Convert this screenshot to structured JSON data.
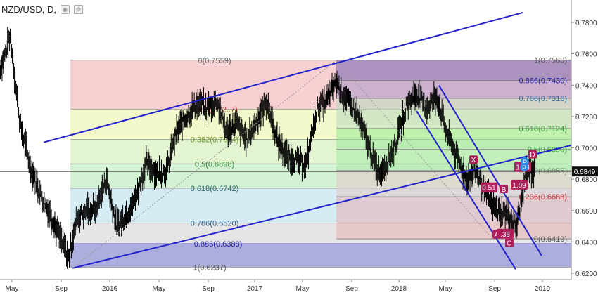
{
  "header": {
    "symbol_title": "NZD/USD, D,",
    "icon_eye": "eye-icon",
    "icon_settings": "gear-icon"
  },
  "price_badge": "0.6849",
  "colors": {
    "channel": "#2222cc",
    "fib_upper": "#e8a5a5",
    "fib_green": "#a8e6a0",
    "fib_blue": "#a8c8e8",
    "fib_lavender": "#8888c8",
    "pattern": "#b01e5a",
    "candles": "#000000"
  },
  "chart_data": {
    "type": "line",
    "title": "NZD/USD, D,",
    "xlabel": "",
    "ylabel": "",
    "x_ticks": [
      "May",
      "Sep",
      "2016",
      "May",
      "Sep",
      "2017",
      "May",
      "Sep",
      "2018",
      "May",
      "Sep",
      "2019"
    ],
    "y_ticks": [
      "0.7800",
      "0.7600",
      "0.7400",
      "0.7200",
      "0.7000",
      "0.6800",
      "0.6600",
      "0.6400",
      "0.6200"
    ],
    "ylim": [
      0.618,
      0.7885
    ],
    "x_domain": [
      "2015-03-20",
      "2019-03-08"
    ],
    "grid": false,
    "series": [
      {
        "x": [
          "2015-03-20",
          "2015-04-15",
          "2015-05-10",
          "2015-06-05",
          "2015-07-01",
          "2015-07-25",
          "2015-08-20",
          "2015-09-10",
          "2015-10-01",
          "2015-10-25",
          "2015-11-20",
          "2015-12-15",
          "2016-01-10",
          "2016-02-05",
          "2016-03-01",
          "2016-03-25",
          "2016-04-20",
          "2016-05-15",
          "2016-06-10",
          "2016-07-05",
          "2016-08-01",
          "2016-08-25",
          "2016-09-20",
          "2016-10-15",
          "2016-11-10",
          "2016-12-05",
          "2017-01-01",
          "2017-01-25",
          "2017-02-20",
          "2017-03-15",
          "2017-04-10",
          "2017-05-05",
          "2017-06-01",
          "2017-06-25",
          "2017-07-20",
          "2017-08-15",
          "2017-09-10",
          "2017-10-05",
          "2017-11-01",
          "2017-11-25",
          "2017-12-20",
          "2018-01-15",
          "2018-02-10",
          "2018-03-05",
          "2018-04-01",
          "2018-04-25",
          "2018-05-20",
          "2018-06-15",
          "2018-07-10",
          "2018-08-05",
          "2018-08-30",
          "2018-09-25",
          "2018-10-20",
          "2018-11-15",
          "2018-12-08"
        ],
        "values": [
          0.75,
          0.77,
          0.715,
          0.688,
          0.67,
          0.658,
          0.642,
          0.63,
          0.655,
          0.66,
          0.662,
          0.68,
          0.65,
          0.658,
          0.67,
          0.69,
          0.685,
          0.685,
          0.71,
          0.72,
          0.728,
          0.725,
          0.73,
          0.71,
          0.715,
          0.705,
          0.718,
          0.73,
          0.705,
          0.695,
          0.692,
          0.69,
          0.725,
          0.73,
          0.742,
          0.73,
          0.722,
          0.705,
          0.685,
          0.69,
          0.704,
          0.728,
          0.735,
          0.725,
          0.733,
          0.71,
          0.695,
          0.68,
          0.685,
          0.67,
          0.66,
          0.658,
          0.65,
          0.685,
          0.686
        ],
        "labels_mode": "approximate path"
      }
    ],
    "fib_left": {
      "levels": [
        {
          "label": "0(0.7559)",
          "value": 0.7559
        },
        {
          "label": "0.2...(0.72..7)",
          "value": 0.7247
        },
        {
          "label": "0.382(0.7054)",
          "value": 0.7054
        },
        {
          "label": "0.5(0.6898)",
          "value": 0.6898
        },
        {
          "label": "0.618(0.6742)",
          "value": 0.6742
        },
        {
          "label": "0.786(0.6520)",
          "value": 0.652
        },
        {
          "label": "0.886(0.6388)",
          "value": 0.6388
        },
        {
          "label": "1(0.6237)",
          "value": 0.6237
        }
      ]
    },
    "fib_right": {
      "levels": [
        {
          "label": "1(0.7560)",
          "value": 0.756
        },
        {
          "label": "0.886(0.7430)",
          "value": 0.743
        },
        {
          "label": "0.786(0.7316)",
          "value": 0.7316
        },
        {
          "label": "0.618(0.7124)",
          "value": 0.7124
        },
        {
          "label": "0.5(0.6990)",
          "value": 0.699
        },
        {
          "label": "0.382(0.6855)",
          "value": 0.6855
        },
        {
          "label": "0.236(0.6688)",
          "value": 0.6688
        },
        {
          "label": "0(0.6419)",
          "value": 0.6419
        }
      ]
    },
    "harmonic_labels": [
      "X",
      "A",
      "B",
      "C",
      "D",
      "P",
      "P"
    ],
    "ratio_labels": [
      "0.51",
      "1.13",
      "1.89",
      ".36"
    ]
  }
}
